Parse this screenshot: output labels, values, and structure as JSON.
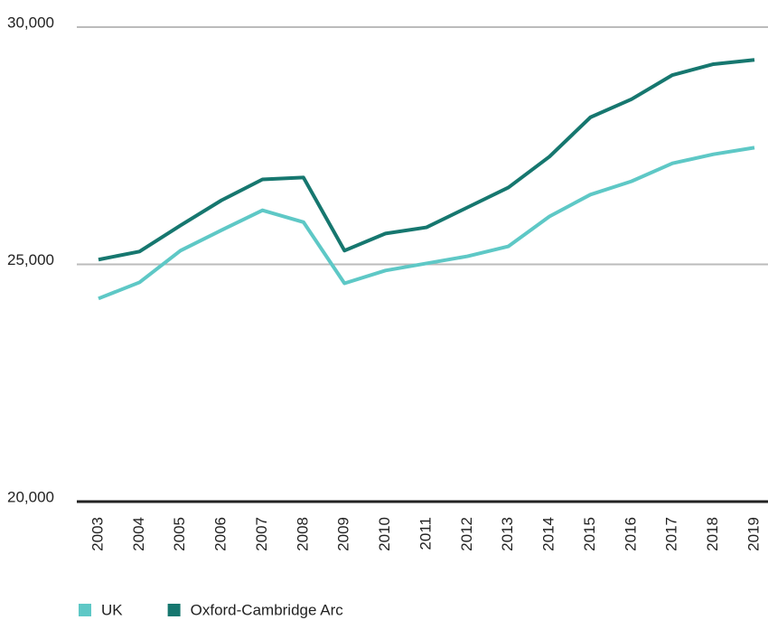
{
  "chart_data": {
    "type": "line",
    "categories": [
      "2003",
      "2004",
      "2005",
      "2006",
      "2007",
      "2008",
      "2009",
      "2010",
      "2011",
      "2012",
      "2013",
      "2014",
      "2015",
      "2016",
      "2017",
      "2018",
      "2019"
    ],
    "series": [
      {
        "name": "UK",
        "color": "#5ec8c6",
        "values": [
          24280,
          24620,
          25290,
          25720,
          26140,
          25890,
          24600,
          24870,
          25020,
          25170,
          25380,
          26010,
          26470,
          26750,
          27130,
          27320,
          27460
        ]
      },
      {
        "name": "Oxford-Cambridge Arc",
        "color": "#16776f",
        "values": [
          25100,
          25270,
          25820,
          26350,
          26790,
          26830,
          25290,
          25650,
          25780,
          26200,
          26620,
          27270,
          28100,
          28480,
          28990,
          29220,
          29310
        ]
      }
    ],
    "ylim": [
      20000,
      30000
    ],
    "yticks": [
      {
        "value": 20000,
        "label": "20,000"
      },
      {
        "value": 25000,
        "label": "25,000"
      },
      {
        "value": 30000,
        "label": "30,000"
      }
    ],
    "grid": true
  }
}
